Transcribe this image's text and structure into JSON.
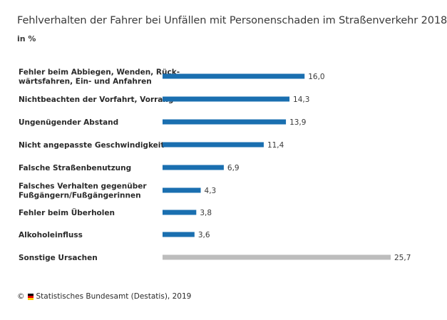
{
  "chart_data": {
    "type": "bar",
    "orientation": "horizontal",
    "title": "Fehlverhalten der Fahrer bei Unfällen mit Personenschaden im Straßenverkehr 2018",
    "subtitle": "in %",
    "categories": [
      [
        "Fehler beim Abbiegen, Wenden, Rück-",
        "wärtsfahren, Ein- und Anfahren"
      ],
      [
        "Nichtbeachten der Vorfahrt, Vorrang"
      ],
      [
        "Ungenügender Abstand"
      ],
      [
        "Nicht angepasste Geschwindigkeit"
      ],
      [
        "Falsche Straßenbenutzung"
      ],
      [
        "Falsches Verhalten gegenüber",
        "Fußgängern/Fußgängerinnen"
      ],
      [
        "Fehler beim Überholen"
      ],
      [
        "Alkoholeinfluss"
      ],
      [
        "Sonstige Ursachen"
      ]
    ],
    "values": [
      16.0,
      14.3,
      13.9,
      11.4,
      6.9,
      4.3,
      3.8,
      3.6,
      25.7
    ],
    "value_labels": [
      "16,0",
      "14,3",
      "13,9",
      "11,4",
      "6,9",
      "4,3",
      "3,8",
      "3,6",
      "25,7"
    ],
    "colors": [
      "#1a6fb0",
      "#1a6fb0",
      "#1a6fb0",
      "#1a6fb0",
      "#1a6fb0",
      "#1a6fb0",
      "#1a6fb0",
      "#1a6fb0",
      "#bdbdbd"
    ],
    "xlim": [
      0,
      25.7
    ],
    "grid": false,
    "legend": "none"
  },
  "footer": {
    "copyright_symbol": "©",
    "source": "Statistisches Bundesamt (Destatis), 2019",
    "flag_colors": [
      "#000000",
      "#dd0000",
      "#ffce00"
    ]
  }
}
